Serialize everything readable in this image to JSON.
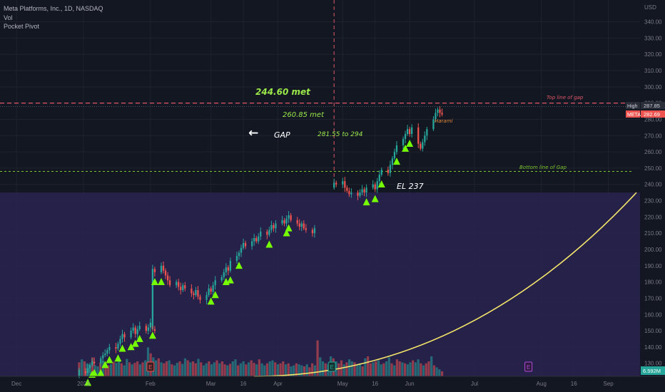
{
  "header": {
    "symbol_line": "Meta Platforms, Inc., 1D, NASDAQ",
    "indicator_vol": "Vol",
    "indicator_pp": "Pocket Pivot"
  },
  "price_axis": {
    "currency": "USD",
    "ticks": [
      340,
      330,
      320,
      310,
      300,
      290,
      280,
      270,
      260,
      250,
      240,
      230,
      220,
      210,
      200,
      190,
      180,
      170,
      160,
      150,
      140,
      130
    ],
    "tick_labels": [
      "340.00",
      "330.00",
      "320.00",
      "310.00",
      "300.00",
      "290.00",
      "280.00",
      "270.00",
      "260.00",
      "250.00",
      "240.00",
      "230.00",
      "220.00",
      "210.00",
      "200.00",
      "190.00",
      "180.00",
      "170.00",
      "160.00",
      "150.00",
      "140.00",
      "130.00"
    ],
    "range": [
      122,
      349
    ],
    "high_label": "High",
    "high_value": "287.85",
    "meta_label": "META",
    "meta_value": "282.69",
    "volume_value": "6.592M"
  },
  "time_axis": {
    "labels": [
      "Dec",
      "2023",
      "Feb",
      "Mar",
      "16",
      "Apr",
      "May",
      "16",
      "Jun",
      "Jul",
      "Aug",
      "16",
      "Sep"
    ],
    "label_dates": [
      "2022-12-01",
      "2023-01-01",
      "2023-02-01",
      "2023-03-01",
      "2023-03-16",
      "2023-04-01",
      "2023-05-01",
      "2023-05-16",
      "2023-06-01",
      "2023-07-01",
      "2023-08-01",
      "2023-08-16",
      "2023-09-01"
    ]
  },
  "annotations": {
    "met_244": "244.60  met",
    "met_260": "260.85 met",
    "range_text": "281.55 to 294",
    "gap_arrow": "←",
    "gap_label": "GAP",
    "el_label": "EL  237",
    "harami": "Harami",
    "top_line": "Top line of gap",
    "bottom_line": "Bottom line of Gap",
    "earnings_marker": "E"
  },
  "colors": {
    "background": "#131722",
    "up": "#26a69a",
    "down": "#ef5350",
    "pivot": "#76ff03",
    "projection": "#f3e46a",
    "purple_zone": "#2a2350",
    "top_gap_line": "#e0576a",
    "bottom_gap_line": "#7cc42d",
    "annotation_green": "#9be84a"
  },
  "chart_data": {
    "type": "candlestick",
    "title": "Meta Platforms, Inc., 1D, NASDAQ",
    "y_range": [
      122,
      349
    ],
    "x_range": [
      "2022-11-25",
      "2023-09-14"
    ],
    "horizontal_lines": [
      {
        "name": "Top line of gap",
        "value": 290
      },
      {
        "name": "Bottom line of Gap",
        "value": 248
      }
    ],
    "vertical_marker_date": "2023-04-27",
    "shaded_zone": {
      "from": 122,
      "to": 235
    },
    "segments": [
      {
        "start": "2022-12-30",
        "points": [
          [
            122,
            126
          ],
          [
            125,
            124
          ],
          [
            124,
            127
          ],
          [
            127,
            129
          ],
          [
            129,
            131
          ],
          [
            131,
            130
          ],
          [
            130,
            133
          ],
          [
            133,
            135
          ],
          [
            135,
            136
          ],
          [
            136,
            138
          ],
          [
            138,
            140
          ],
          [
            140,
            139
          ],
          [
            139,
            142
          ],
          [
            142,
            145
          ],
          [
            145,
            148
          ],
          [
            148,
            146
          ],
          [
            146,
            150
          ],
          [
            150,
            152
          ],
          [
            152,
            148
          ],
          [
            148,
            151
          ],
          [
            151,
            153
          ],
          [
            153,
            150
          ],
          [
            150,
            152
          ],
          [
            152,
            155
          ],
          [
            155,
            151
          ],
          [
            151,
            150
          ]
        ]
      },
      {
        "start": "2023-02-02",
        "points": [
          [
            153,
            188
          ],
          [
            188,
            186
          ],
          [
            186,
            190
          ],
          [
            190,
            187
          ],
          [
            187,
            184
          ],
          [
            184,
            181
          ],
          [
            181,
            178
          ],
          [
            178,
            180
          ],
          [
            180,
            177
          ],
          [
            177,
            175
          ],
          [
            175,
            178
          ],
          [
            178,
            176
          ],
          [
            176,
            173
          ],
          [
            173,
            172
          ],
          [
            172,
            175
          ],
          [
            175,
            171
          ],
          [
            171,
            169
          ],
          [
            169,
            172
          ],
          [
            172,
            176
          ],
          [
            176,
            174
          ],
          [
            174,
            178
          ],
          [
            178,
            181
          ],
          [
            181,
            183
          ],
          [
            183,
            186
          ],
          [
            186,
            189
          ],
          [
            189,
            187
          ],
          [
            187,
            193
          ],
          [
            193,
            196
          ],
          [
            196,
            198
          ],
          [
            198,
            201
          ],
          [
            201,
            204
          ],
          [
            204,
            202
          ],
          [
            202,
            205
          ],
          [
            205,
            207
          ],
          [
            207,
            205
          ],
          [
            205,
            208
          ],
          [
            208,
            211
          ],
          [
            211,
            209
          ],
          [
            209,
            212
          ],
          [
            212,
            215
          ],
          [
            215,
            213
          ],
          [
            213,
            216
          ],
          [
            216,
            218
          ],
          [
            218,
            216
          ],
          [
            216,
            219
          ],
          [
            219,
            221
          ],
          [
            221,
            218
          ],
          [
            218,
            216
          ],
          [
            216,
            214
          ],
          [
            214,
            216
          ],
          [
            216,
            213
          ],
          [
            213,
            212
          ],
          [
            212,
            210
          ],
          [
            210,
            213
          ]
        ]
      },
      {
        "start": "2023-04-27",
        "points": [
          [
            238,
            241
          ],
          [
            241,
            240
          ],
          [
            240,
            242
          ],
          [
            242,
            238
          ],
          [
            238,
            236
          ],
          [
            236,
            234
          ],
          [
            234,
            235
          ],
          [
            235,
            233
          ],
          [
            233,
            235
          ],
          [
            235,
            237
          ],
          [
            237,
            235
          ],
          [
            235,
            238
          ],
          [
            238,
            240
          ],
          [
            240,
            237
          ],
          [
            237,
            242
          ],
          [
            242,
            246
          ],
          [
            246,
            249
          ],
          [
            249,
            247
          ],
          [
            247,
            252
          ],
          [
            252,
            256
          ],
          [
            256,
            260
          ],
          [
            260,
            264
          ],
          [
            264,
            268
          ],
          [
            268,
            271
          ],
          [
            271,
            274
          ],
          [
            274,
            271
          ],
          [
            271,
            275
          ],
          [
            275,
            265
          ],
          [
            265,
            262
          ],
          [
            262,
            266
          ],
          [
            266,
            270
          ],
          [
            270,
            274
          ],
          [
            274,
            280
          ],
          [
            280,
            284
          ],
          [
            284,
            286
          ],
          [
            286,
            284
          ],
          [
            284,
            283
          ]
        ]
      }
    ],
    "pocket_pivots": [
      "2023-01-03",
      "2023-01-05",
      "2023-01-06",
      "2023-01-09",
      "2023-01-11",
      "2023-01-13",
      "2023-01-17",
      "2023-01-19",
      "2023-01-23",
      "2023-01-25",
      "2023-01-27",
      "2023-02-02",
      "2023-02-03",
      "2023-02-06",
      "2023-03-01",
      "2023-03-03",
      "2023-03-08",
      "2023-03-10",
      "2023-03-14",
      "2023-03-28",
      "2023-04-05",
      "2023-04-06",
      "2023-05-12",
      "2023-05-16",
      "2023-05-19",
      "2023-05-26",
      "2023-05-30",
      "2023-06-01"
    ],
    "volume_values": [
      28,
      34,
      30,
      26,
      24,
      38,
      22,
      20,
      27,
      31,
      25,
      22,
      24,
      29,
      27,
      31,
      26,
      22,
      35,
      28,
      24,
      27,
      30,
      24,
      28,
      32,
      58,
      46,
      38,
      32,
      36,
      28,
      26,
      30,
      32,
      24,
      22,
      27,
      30,
      25,
      36,
      32,
      28,
      30,
      26,
      35,
      28,
      22,
      26,
      30,
      24,
      28,
      32,
      26,
      30,
      24,
      22,
      25,
      30,
      34,
      22,
      26,
      30,
      24,
      28,
      32,
      27,
      24,
      34,
      26,
      22,
      26,
      30,
      32,
      28,
      24,
      26,
      30,
      24,
      26,
      20,
      22,
      26,
      24,
      22,
      20,
      24,
      18,
      26,
      22,
      72,
      38,
      30,
      26,
      24,
      40,
      36,
      30,
      26,
      32,
      24,
      28,
      34,
      30,
      28,
      22,
      26,
      20,
      36,
      40,
      26,
      28,
      30,
      32,
      24,
      26,
      30,
      38,
      26,
      22,
      34,
      30,
      28,
      26,
      24,
      28,
      32,
      28,
      34,
      26,
      22,
      26,
      30,
      40,
      22,
      18,
      14,
      10
    ],
    "volume_range": [
      0,
      100
    ],
    "projection_curve": {
      "from": [
        "2023-03-21",
        122
      ],
      "to": [
        "2023-09-14",
        235
      ]
    }
  }
}
